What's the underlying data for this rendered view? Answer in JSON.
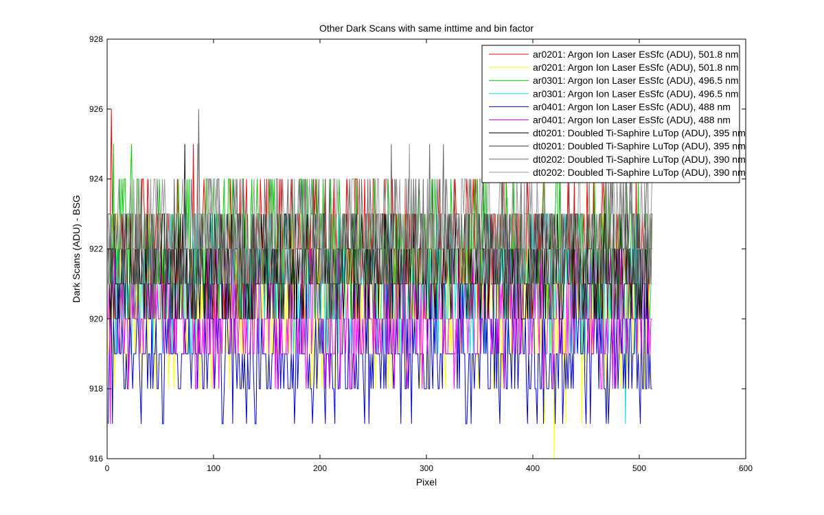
{
  "chart_data": {
    "type": "line",
    "title": "Other Dark Scans with same inttime and bin factor",
    "xlabel": "Pixel",
    "ylabel": "Dark Scans (ADU) - BSG",
    "xlim": [
      0,
      600
    ],
    "ylim": [
      916,
      928
    ],
    "xticks": [
      0,
      100,
      200,
      300,
      400,
      500,
      600
    ],
    "yticks": [
      916,
      918,
      920,
      922,
      924,
      926,
      928
    ],
    "xtick_labels": [
      "0",
      "100",
      "200",
      "300",
      "400",
      "500",
      "600"
    ],
    "ytick_labels": [
      "916",
      "918",
      "920",
      "922",
      "924",
      "926",
      "928"
    ],
    "grid": false,
    "legend_position": "top-right",
    "n_points": 512,
    "series": [
      {
        "name": "ar0201: Argon Ion Laser EsSfc (ADU), 501.8 nm",
        "color": "#ff0000",
        "baseline": 922.0,
        "levels": [
          920,
          921,
          922,
          923,
          924
        ],
        "weights": [
          0.07,
          0.22,
          0.38,
          0.23,
          0.1
        ],
        "spikes": [
          {
            "x": 3,
            "y": 926
          },
          {
            "x": 80,
            "y": 925
          }
        ]
      },
      {
        "name": "ar0201: Argon Ion Laser EsSfc (ADU), 501.8 nm",
        "color": "#ffff00",
        "baseline": 920.0,
        "levels": [
          918,
          919,
          920,
          921,
          922,
          923
        ],
        "weights": [
          0.07,
          0.18,
          0.3,
          0.27,
          0.14,
          0.04
        ],
        "spikes": [
          {
            "x": 419,
            "y": 916
          },
          {
            "x": 410,
            "y": 917
          },
          {
            "x": 430,
            "y": 917
          },
          {
            "x": 445,
            "y": 917
          }
        ]
      },
      {
        "name": "ar0301: Argon Ion Laser EsSfc (ADU), 496.5 nm",
        "color": "#00cc00",
        "baseline": 922.0,
        "levels": [
          920,
          921,
          922,
          923,
          924
        ],
        "weights": [
          0.08,
          0.22,
          0.34,
          0.24,
          0.12
        ],
        "spikes": [
          {
            "x": 5,
            "y": 925
          },
          {
            "x": 22,
            "y": 925
          }
        ]
      },
      {
        "name": "ar0301: Argon Ion Laser EsSfc (ADU), 496.5 nm",
        "color": "#00dddd",
        "baseline": 921.0,
        "levels": [
          919,
          920,
          921,
          922,
          923
        ],
        "weights": [
          0.1,
          0.25,
          0.35,
          0.22,
          0.08
        ],
        "spikes": [
          {
            "x": 486,
            "y": 917
          }
        ]
      },
      {
        "name": "ar0401: Argon Ion Laser EsSfc (ADU), 488 nm",
        "color": "#0000cc",
        "baseline": 919.0,
        "levels": [
          917,
          918,
          919,
          920,
          921
        ],
        "weights": [
          0.04,
          0.3,
          0.4,
          0.2,
          0.06
        ],
        "spikes": [
          {
            "x": 108,
            "y": 917
          },
          {
            "x": 130,
            "y": 917
          },
          {
            "x": 175,
            "y": 917
          },
          {
            "x": 192,
            "y": 917
          },
          {
            "x": 241,
            "y": 917
          },
          {
            "x": 336,
            "y": 917
          }
        ]
      },
      {
        "name": "ar0401: Argon Ion Laser EsSfc (ADU), 488 nm",
        "color": "#ff00ff",
        "baseline": 920.0,
        "levels": [
          918,
          919,
          920,
          921,
          922
        ],
        "weights": [
          0.04,
          0.28,
          0.38,
          0.22,
          0.08
        ],
        "spikes": [
          {
            "x": 2,
            "y": 917
          }
        ]
      },
      {
        "name": "dt0201: Doubled Ti-Saphire LuTop (ADU), 395 nm",
        "color": "#000000",
        "baseline": 921.5,
        "levels": [
          920,
          921,
          922,
          923
        ],
        "weights": [
          0.16,
          0.34,
          0.34,
          0.16
        ],
        "spikes": [
          {
            "x": 72,
            "y": 925
          }
        ]
      },
      {
        "name": "dt0201: Doubled Ti-Saphire LuTop (ADU), 395 nm",
        "color": "#333333",
        "baseline": 921.5,
        "levels": [
          920,
          921,
          922,
          923
        ],
        "weights": [
          0.16,
          0.34,
          0.34,
          0.16
        ],
        "spikes": []
      },
      {
        "name": "dt0202: Doubled Ti-Saphire LuTop (ADU), 390 nm",
        "color": "#666666",
        "baseline": 922.0,
        "levels": [
          920,
          921,
          922,
          923,
          924
        ],
        "weights": [
          0.08,
          0.2,
          0.34,
          0.26,
          0.12
        ],
        "spikes": [
          {
            "x": 85,
            "y": 926
          },
          {
            "x": 266,
            "y": 925
          },
          {
            "x": 302,
            "y": 925
          },
          {
            "x": 315,
            "y": 925
          }
        ]
      },
      {
        "name": "dt0202: Doubled Ti-Saphire LuTop (ADU), 390 nm",
        "color": "#999999",
        "baseline": 922.5,
        "levels": [
          921,
          922,
          923,
          924
        ],
        "weights": [
          0.12,
          0.34,
          0.36,
          0.18
        ],
        "spikes": [
          {
            "x": 84,
            "y": 925
          },
          {
            "x": 283,
            "y": 925
          }
        ]
      }
    ]
  }
}
